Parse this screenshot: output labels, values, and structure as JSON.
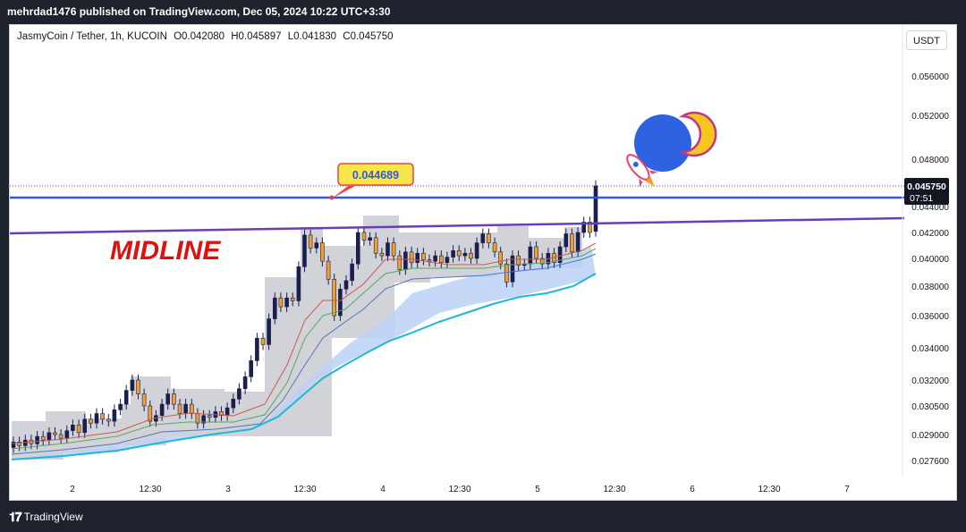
{
  "header": {
    "published": "mehrdad1476 published on TradingView.com, Dec 05, 2024 10:22 UTC+3:30"
  },
  "legend": {
    "symbol": "JasmyCoin / Tether, 1h, KUCOIN",
    "open": "O0.042080",
    "high": "H0.045897",
    "low": "L0.041830",
    "close": "C0.045750"
  },
  "currency_button": "USDT",
  "annotations": {
    "midline_label": "MIDLINE",
    "callout_price": "0.044689",
    "last_price": "0.045750",
    "countdown": "07:51"
  },
  "footer": {
    "brand": "TradingView",
    "logo_glyph": "𝟏𝟕"
  },
  "colors": {
    "background": "#1e222d",
    "up_candle": "#1a1f4e",
    "down_candle": "#f0a030",
    "resistance_line": "#2f5bd9",
    "midline": "#6a3fb5",
    "midline_text": "#e01010",
    "ema_cyan": "#1fb7d6"
  },
  "chart_data": {
    "type": "candlestick",
    "title": "JasmyCoin / Tether, 1h, KUCOIN",
    "xlabel": "",
    "ylabel": "",
    "y_ticks": [
      "0.056000",
      "0.052000",
      "0.048000",
      "0.044000",
      "0.042000",
      "0.040000",
      "0.038000",
      "0.036000",
      "0.034000",
      "0.032000",
      "0.030500",
      "0.029000",
      "0.027600"
    ],
    "x_ticks": [
      "2",
      "12:30",
      "3",
      "12:30",
      "4",
      "12:30",
      "5",
      "12:30",
      "6",
      "12:30",
      "7"
    ],
    "horizontal_line": 0.044689,
    "midline_from": 0.0418,
    "midline_to": 0.0428,
    "last_price": 0.04575,
    "candles_open_close": [
      [
        0.0283,
        0.0286
      ],
      [
        0.0286,
        0.0284
      ],
      [
        0.0284,
        0.0287
      ],
      [
        0.0287,
        0.0285
      ],
      [
        0.0285,
        0.0289
      ],
      [
        0.0289,
        0.0287
      ],
      [
        0.0287,
        0.0291
      ],
      [
        0.0291,
        0.029
      ],
      [
        0.029,
        0.0288
      ],
      [
        0.0288,
        0.0292
      ],
      [
        0.0292,
        0.0295
      ],
      [
        0.0295,
        0.0291
      ],
      [
        0.0291,
        0.0298
      ],
      [
        0.0298,
        0.0296
      ],
      [
        0.0296,
        0.0301
      ],
      [
        0.0301,
        0.0298
      ],
      [
        0.0298,
        0.0297
      ],
      [
        0.0297,
        0.0303
      ],
      [
        0.0303,
        0.0306
      ],
      [
        0.0306,
        0.0314
      ],
      [
        0.0314,
        0.032
      ],
      [
        0.032,
        0.0312
      ],
      [
        0.0312,
        0.0305
      ],
      [
        0.0305,
        0.0297
      ],
      [
        0.0297,
        0.03
      ],
      [
        0.03,
        0.0306
      ],
      [
        0.0306,
        0.0312
      ],
      [
        0.0312,
        0.0306
      ],
      [
        0.0306,
        0.0301
      ],
      [
        0.0301,
        0.0306
      ],
      [
        0.0306,
        0.0301
      ],
      [
        0.0301,
        0.0296
      ],
      [
        0.0296,
        0.03
      ],
      [
        0.03,
        0.0299
      ],
      [
        0.0299,
        0.0302
      ],
      [
        0.0302,
        0.03
      ],
      [
        0.03,
        0.0304
      ],
      [
        0.0304,
        0.0309
      ],
      [
        0.0309,
        0.0315
      ],
      [
        0.0315,
        0.0322
      ],
      [
        0.0322,
        0.0332
      ],
      [
        0.0332,
        0.0346
      ],
      [
        0.0346,
        0.0342
      ],
      [
        0.0342,
        0.0358
      ],
      [
        0.0358,
        0.0372
      ],
      [
        0.0372,
        0.0366
      ],
      [
        0.0366,
        0.0372
      ],
      [
        0.0372,
        0.037
      ],
      [
        0.037,
        0.0394
      ],
      [
        0.0394,
        0.0418
      ],
      [
        0.0418,
        0.0408
      ],
      [
        0.0408,
        0.0412
      ],
      [
        0.0412,
        0.0398
      ],
      [
        0.0398,
        0.0385
      ],
      [
        0.0385,
        0.036
      ],
      [
        0.036,
        0.0378
      ],
      [
        0.0378,
        0.0384
      ],
      [
        0.0384,
        0.0396
      ],
      [
        0.0396,
        0.042
      ],
      [
        0.042,
        0.0414
      ],
      [
        0.0414,
        0.0416
      ],
      [
        0.0416,
        0.0404
      ],
      [
        0.0404,
        0.0402
      ],
      [
        0.0402,
        0.0412
      ],
      [
        0.0412,
        0.0402
      ],
      [
        0.0402,
        0.0392
      ],
      [
        0.0392,
        0.0405
      ],
      [
        0.0405,
        0.0397
      ],
      [
        0.0397,
        0.0404
      ],
      [
        0.0404,
        0.0399
      ],
      [
        0.0399,
        0.0398
      ],
      [
        0.0398,
        0.0402
      ],
      [
        0.0402,
        0.0397
      ],
      [
        0.0397,
        0.0401
      ],
      [
        0.0401,
        0.0406
      ],
      [
        0.0406,
        0.0402
      ],
      [
        0.0402,
        0.0404
      ],
      [
        0.0404,
        0.04
      ],
      [
        0.04,
        0.0412
      ],
      [
        0.0412,
        0.0419
      ],
      [
        0.0419,
        0.0412
      ],
      [
        0.0412,
        0.0405
      ],
      [
        0.0405,
        0.0396
      ],
      [
        0.0396,
        0.0383
      ],
      [
        0.0383,
        0.0402
      ],
      [
        0.0402,
        0.0395
      ],
      [
        0.0395,
        0.0396
      ],
      [
        0.0396,
        0.0409
      ],
      [
        0.0409,
        0.04
      ],
      [
        0.04,
        0.0396
      ],
      [
        0.0396,
        0.0404
      ],
      [
        0.0404,
        0.0397
      ],
      [
        0.0397,
        0.0409
      ],
      [
        0.0409,
        0.0419
      ],
      [
        0.0419,
        0.0405
      ],
      [
        0.0405,
        0.042
      ],
      [
        0.042,
        0.0428
      ],
      [
        0.0428,
        0.042
      ],
      [
        0.04208,
        0.04575
      ]
    ]
  }
}
